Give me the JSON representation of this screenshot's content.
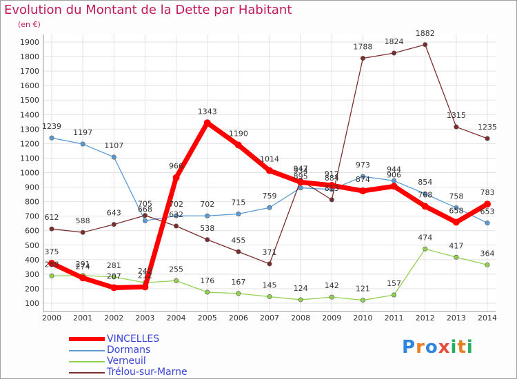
{
  "title": "Evolution du Montant de la Dette par Habitant",
  "unit": "(en €)",
  "logo": {
    "text": "Proxiti",
    "letter_colors": [
      "#2e86de",
      "#e67e22",
      "#2e86de",
      "#e74c3c",
      "#27ae60",
      "#e67e22",
      "#27ae60"
    ]
  },
  "chart_data": {
    "type": "line",
    "title": "Evolution du Montant de la Dette par Habitant",
    "ylabel": "(en €)",
    "x": [
      2000,
      2001,
      2002,
      2003,
      2004,
      2005,
      2006,
      2007,
      2008,
      2009,
      2010,
      2011,
      2012,
      2013,
      2014
    ],
    "ylim": [
      100,
      1900
    ],
    "yticks": [
      100,
      200,
      300,
      400,
      500,
      600,
      700,
      800,
      900,
      1000,
      1100,
      1200,
      1300,
      1400,
      1500,
      1600,
      1700,
      1800,
      1900
    ],
    "grid": true,
    "legend_position": "bottom-left",
    "series": [
      {
        "name": "VINCELLES",
        "color": "#ff0000",
        "values": [
          375,
          274,
          207,
          212,
          966,
          1343,
          1190,
          1014,
          934,
          912,
          874,
          906,
          768,
          658,
          783
        ]
      },
      {
        "name": "Dormans",
        "color": "#5b9bd5",
        "values": [
          1239,
          1197,
          1107,
          668,
          702,
          702,
          715,
          759,
          895,
          884,
          973,
          944,
          854,
          758,
          653
        ]
      },
      {
        "name": "Verneuil",
        "color": "#92d050",
        "values": [
          288,
          291,
          281,
          242,
          255,
          176,
          167,
          145,
          124,
          142,
          121,
          157,
          474,
          417,
          364
        ]
      },
      {
        "name": "Trélou-sur-Marne",
        "color": "#7b2c2c",
        "values": [
          612,
          588,
          643,
          705,
          632,
          538,
          455,
          371,
          947,
          813,
          1788,
          1824,
          1882,
          1315,
          1235
        ]
      }
    ]
  }
}
